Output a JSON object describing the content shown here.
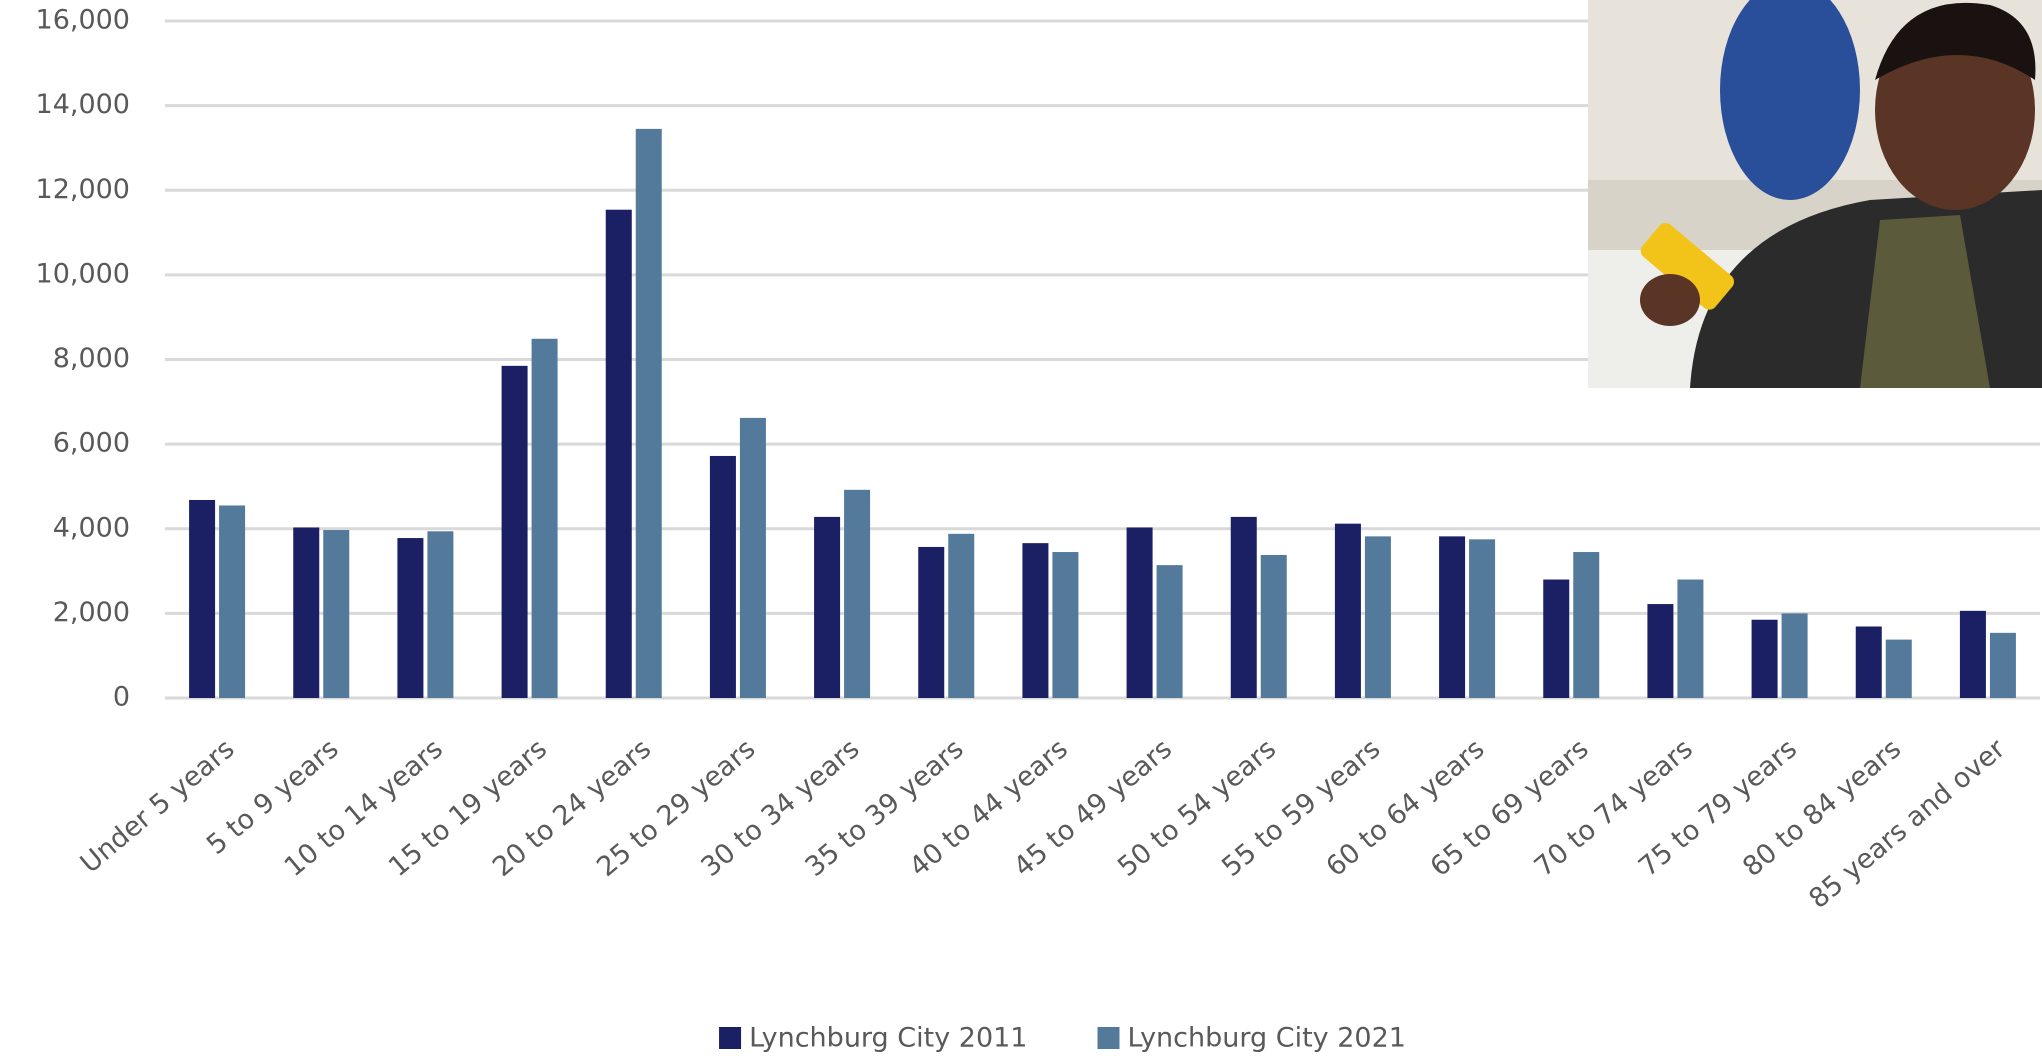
{
  "chart_data": {
    "type": "bar",
    "categories": [
      "Under 5 years",
      "5 to 9 years",
      "10 to 14 years",
      "15 to 19 years",
      "20 to 24 years",
      "25 to 29 years",
      "30 to 34 years",
      "35 to 39 years",
      "40 to 44 years",
      "45 to 49 years",
      "50 to 54 years",
      "55 to 59 years",
      "60 to 64 years",
      "65 to 69 years",
      "70 to 74 years",
      "75 to 79 years",
      "80 to 84 years",
      "85 years and over"
    ],
    "series": [
      {
        "name": "Lynchburg City 2011",
        "color": "#1b1f63",
        "values": [
          4680,
          4030,
          3780,
          7850,
          11540,
          5720,
          4280,
          3570,
          3660,
          4030,
          4280,
          4120,
          3820,
          2800,
          2220,
          1850,
          1690,
          2060
        ]
      },
      {
        "name": "Lynchburg City 2021",
        "color": "#547a9b",
        "values": [
          4550,
          3970,
          3940,
          8490,
          13450,
          6620,
          4920,
          3880,
          3450,
          3140,
          3380,
          3820,
          3750,
          3450,
          2800,
          2000,
          1380,
          1540
        ]
      }
    ],
    "ylim": [
      0,
      16000
    ],
    "yticks": [
      0,
      {
        "value": 2000,
        "label": "2,000"
      },
      {
        "value": 4000,
        "label": "4,000"
      },
      {
        "value": 6000,
        "label": "6,000"
      },
      {
        "value": 8000,
        "label": "8,000"
      },
      {
        "value": 10000,
        "label": "10,000"
      },
      {
        "value": 12000,
        "label": "12,000"
      },
      {
        "value": 14000,
        "label": "14,000"
      },
      {
        "value": 16000,
        "label": "16,000"
      }
    ],
    "grid": true,
    "legend": "bottom"
  }
}
